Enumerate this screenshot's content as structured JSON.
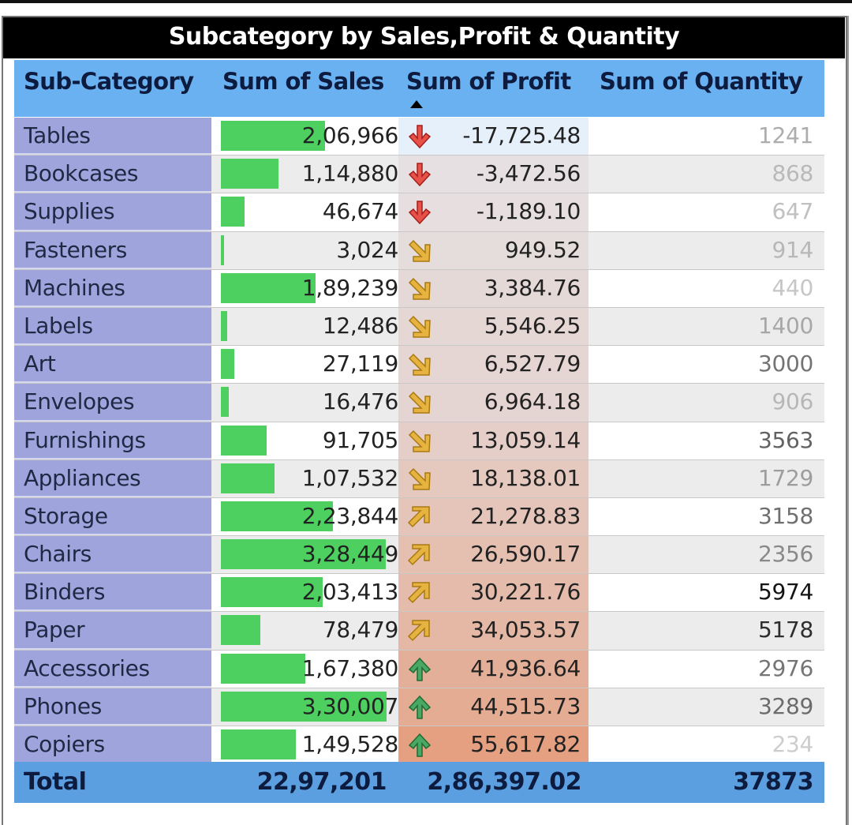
{
  "title": "Subcategory by Sales,Profit & Quantity",
  "columns": {
    "category": "Sub-Category",
    "sales": "Sum of Sales",
    "profit": "Sum of Profit",
    "quantity": "Sum of Quantity"
  },
  "sort": {
    "column": "Sum of Profit",
    "direction": "ascending",
    "icon": "sort-ascending-icon"
  },
  "colors": {
    "header_bg": "#6ab1f1",
    "category_bg": "#a0a4dc",
    "sales_bar": "#4ed061",
    "profit_low": "#e6f0fb",
    "profit_high": "#e4a081",
    "total_bg": "#5b9fe0",
    "icon_red": "#d63a2a",
    "icon_amber": "#d9a632",
    "icon_green": "#3a8a4e"
  },
  "rows": [
    {
      "category": "Tables",
      "sales": "2,06,966",
      "sales_num": 206966,
      "profit": "-17,725.48",
      "profit_num": -17725.48,
      "quantity": "1241",
      "qty_num": 1241,
      "icon": "arrow-down-red"
    },
    {
      "category": "Bookcases",
      "sales": "1,14,880",
      "sales_num": 114880,
      "profit": "-3,472.56",
      "profit_num": -3472.56,
      "quantity": "868",
      "qty_num": 868,
      "icon": "arrow-down-red"
    },
    {
      "category": "Supplies",
      "sales": "46,674",
      "sales_num": 46674,
      "profit": "-1,189.10",
      "profit_num": -1189.1,
      "quantity": "647",
      "qty_num": 647,
      "icon": "arrow-down-red"
    },
    {
      "category": "Fasteners",
      "sales": "3,024",
      "sales_num": 3024,
      "profit": "949.52",
      "profit_num": 949.52,
      "quantity": "914",
      "qty_num": 914,
      "icon": "arrow-down-right-amber"
    },
    {
      "category": "Machines",
      "sales": "1,89,239",
      "sales_num": 189239,
      "profit": "3,384.76",
      "profit_num": 3384.76,
      "quantity": "440",
      "qty_num": 440,
      "icon": "arrow-down-right-amber"
    },
    {
      "category": "Labels",
      "sales": "12,486",
      "sales_num": 12486,
      "profit": "5,546.25",
      "profit_num": 5546.25,
      "quantity": "1400",
      "qty_num": 1400,
      "icon": "arrow-down-right-amber"
    },
    {
      "category": "Art",
      "sales": "27,119",
      "sales_num": 27119,
      "profit": "6,527.79",
      "profit_num": 6527.79,
      "quantity": "3000",
      "qty_num": 3000,
      "icon": "arrow-down-right-amber"
    },
    {
      "category": "Envelopes",
      "sales": "16,476",
      "sales_num": 16476,
      "profit": "6,964.18",
      "profit_num": 6964.18,
      "quantity": "906",
      "qty_num": 906,
      "icon": "arrow-down-right-amber"
    },
    {
      "category": "Furnishings",
      "sales": "91,705",
      "sales_num": 91705,
      "profit": "13,059.14",
      "profit_num": 13059.14,
      "quantity": "3563",
      "qty_num": 3563,
      "icon": "arrow-down-right-amber"
    },
    {
      "category": "Appliances",
      "sales": "1,07,532",
      "sales_num": 107532,
      "profit": "18,138.01",
      "profit_num": 18138.01,
      "quantity": "1729",
      "qty_num": 1729,
      "icon": "arrow-down-right-amber"
    },
    {
      "category": "Storage",
      "sales": "2,23,844",
      "sales_num": 223844,
      "profit": "21,278.83",
      "profit_num": 21278.83,
      "quantity": "3158",
      "qty_num": 3158,
      "icon": "arrow-up-right-amber"
    },
    {
      "category": "Chairs",
      "sales": "3,28,449",
      "sales_num": 328449,
      "profit": "26,590.17",
      "profit_num": 26590.17,
      "quantity": "2356",
      "qty_num": 2356,
      "icon": "arrow-up-right-amber"
    },
    {
      "category": "Binders",
      "sales": "2,03,413",
      "sales_num": 203413,
      "profit": "30,221.76",
      "profit_num": 30221.76,
      "quantity": "5974",
      "qty_num": 5974,
      "icon": "arrow-up-right-amber"
    },
    {
      "category": "Paper",
      "sales": "78,479",
      "sales_num": 78479,
      "profit": "34,053.57",
      "profit_num": 34053.57,
      "quantity": "5178",
      "qty_num": 5178,
      "icon": "arrow-up-right-amber"
    },
    {
      "category": "Accessories",
      "sales": "1,67,380",
      "sales_num": 167380,
      "profit": "41,936.64",
      "profit_num": 41936.64,
      "quantity": "2976",
      "qty_num": 2976,
      "icon": "arrow-up-green"
    },
    {
      "category": "Phones",
      "sales": "3,30,007",
      "sales_num": 330007,
      "profit": "44,515.73",
      "profit_num": 44515.73,
      "quantity": "3289",
      "qty_num": 3289,
      "icon": "arrow-up-green"
    },
    {
      "category": "Copiers",
      "sales": "1,49,528",
      "sales_num": 149528,
      "profit": "55,617.82",
      "profit_num": 55617.82,
      "quantity": "234",
      "qty_num": 234,
      "icon": "arrow-up-green"
    }
  ],
  "total": {
    "label": "Total",
    "sales": "22,97,201",
    "profit": "2,86,397.02",
    "quantity": "37873"
  },
  "chart_data": {
    "type": "table",
    "title": "Subcategory by Sales,Profit & Quantity",
    "columns": [
      "Sub-Category",
      "Sum of Sales",
      "Sum of Profit",
      "Sum of Quantity"
    ],
    "categories": [
      "Tables",
      "Bookcases",
      "Supplies",
      "Fasteners",
      "Machines",
      "Labels",
      "Art",
      "Envelopes",
      "Furnishings",
      "Appliances",
      "Storage",
      "Chairs",
      "Binders",
      "Paper",
      "Accessories",
      "Phones",
      "Copiers"
    ],
    "series": [
      {
        "name": "Sum of Sales",
        "values": [
          206966,
          114880,
          46674,
          3024,
          189239,
          12486,
          27119,
          16476,
          91705,
          107532,
          223844,
          328449,
          203413,
          78479,
          167380,
          330007,
          149528
        ],
        "style": "data bars"
      },
      {
        "name": "Sum of Profit",
        "values": [
          -17725.48,
          -3472.56,
          -1189.1,
          949.52,
          3384.76,
          5546.25,
          6527.79,
          6964.18,
          13059.14,
          18138.01,
          21278.83,
          26590.17,
          30221.76,
          34053.57,
          41936.64,
          44515.73,
          55617.82
        ],
        "style": "icon set + background color scale"
      },
      {
        "name": "Sum of Quantity",
        "values": [
          1241,
          868,
          647,
          914,
          440,
          1400,
          3000,
          906,
          3563,
          1729,
          3158,
          2356,
          5974,
          5178,
          2976,
          3289,
          234
        ],
        "style": "font color scale"
      }
    ],
    "totals": {
      "Sum of Sales": 2297201,
      "Sum of Profit": 286397.02,
      "Sum of Quantity": 37873
    },
    "sorted_by": "Sum of Profit (ascending)"
  }
}
